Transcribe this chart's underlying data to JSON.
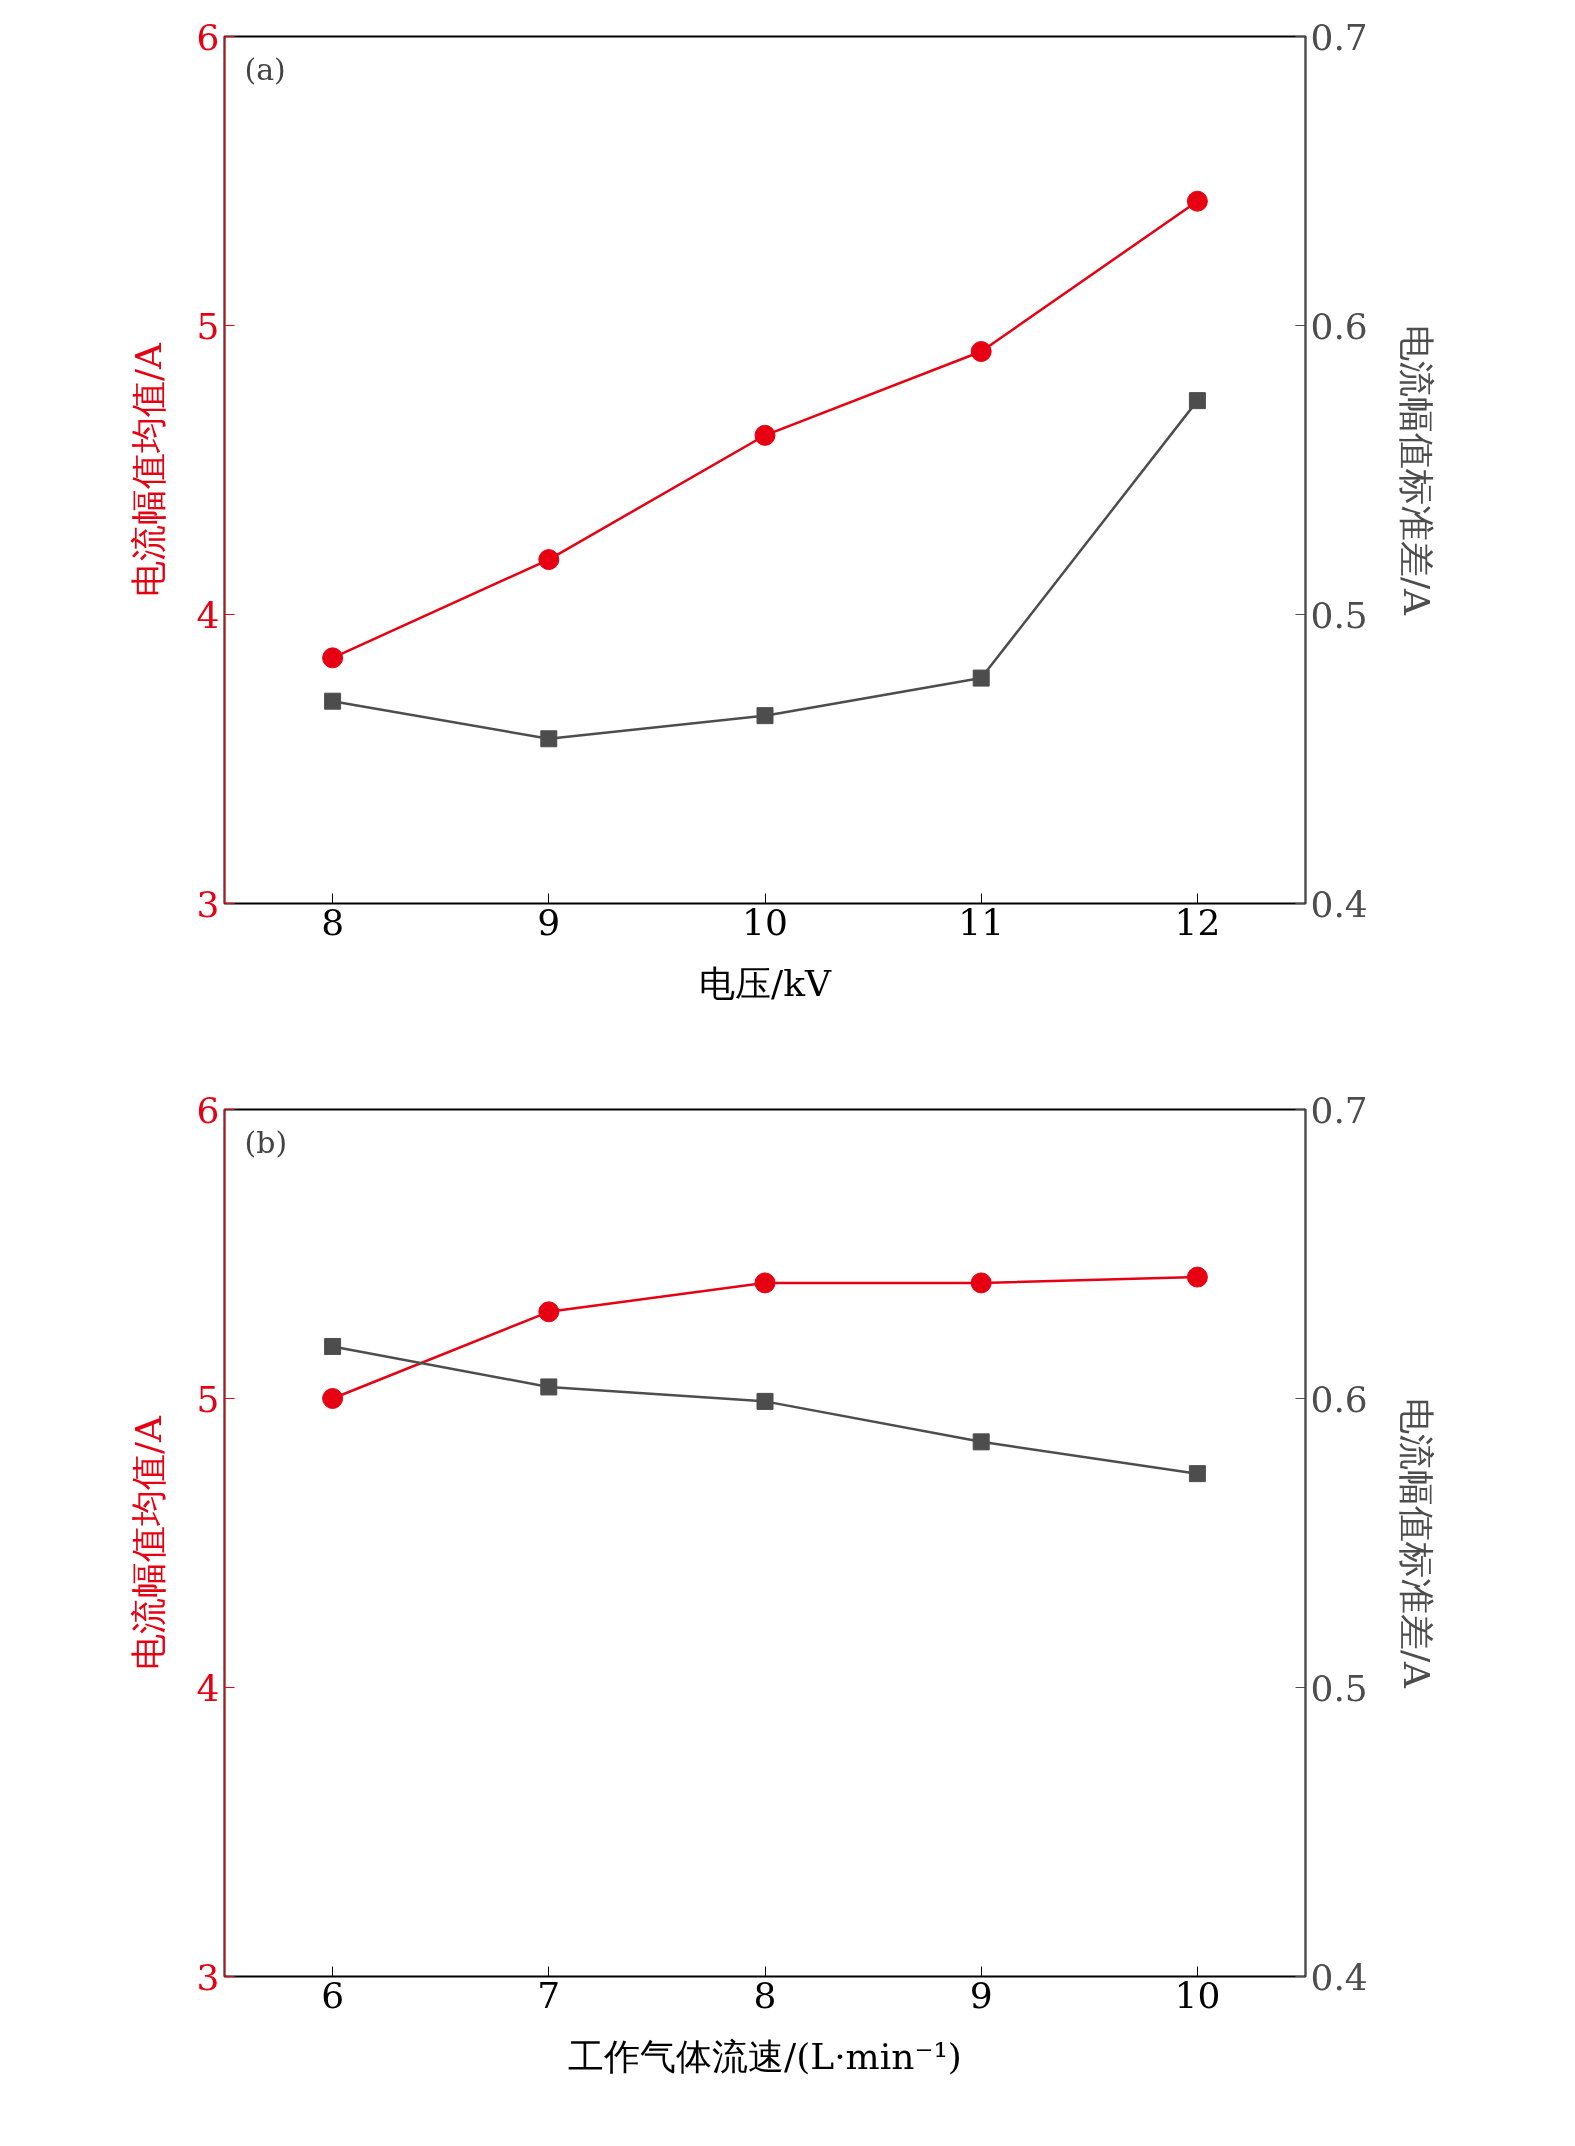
{
  "chart_data": [
    {
      "type": "line",
      "annotations": [
        "(a)"
      ],
      "xlabel": "电压/kV",
      "ylabel": "电流幅值均值/A",
      "y2label": "电流幅值标准差/A",
      "x": [
        8,
        9,
        10,
        11,
        12
      ],
      "xlim": [
        7.5,
        12.5
      ],
      "xticks": [
        8,
        9,
        10,
        11,
        12
      ],
      "ylim": [
        3,
        6
      ],
      "yticks": [
        3,
        4,
        5,
        6
      ],
      "y2lim": [
        0.4,
        0.7
      ],
      "y2ticks": [
        0.4,
        0.5,
        0.6,
        0.7
      ],
      "grid": false,
      "series": [
        {
          "color": "#e60012",
          "marker": "circle",
          "values": [
            3.85,
            4.19,
            4.62,
            4.91,
            5.43
          ]
        },
        {
          "color": "#4d4d4d",
          "marker": "square",
          "axis": "y2",
          "values": [
            0.47,
            0.457,
            0.465,
            0.478,
            0.574
          ]
        }
      ]
    },
    {
      "type": "line",
      "annotations": [
        "(b)"
      ],
      "xlabel": "工作气体流速/(L·min⁻¹)",
      "ylabel": "电流幅值均值/A",
      "y2label": "电流幅值标准差/A",
      "x": [
        6,
        7,
        8,
        9,
        10
      ],
      "xlim": [
        5.5,
        10.5
      ],
      "xticks": [
        6,
        7,
        8,
        9,
        10
      ],
      "ylim": [
        3,
        6
      ],
      "yticks": [
        3,
        4,
        5,
        6
      ],
      "y2lim": [
        0.4,
        0.7
      ],
      "y2ticks": [
        0.4,
        0.5,
        0.6,
        0.7
      ],
      "grid": false,
      "series": [
        {
          "color": "#e60012",
          "marker": "circle",
          "values": [
            5.0,
            5.3,
            5.4,
            5.4,
            5.42
          ]
        },
        {
          "color": "#4d4d4d",
          "marker": "square",
          "axis": "y2",
          "values": [
            0.618,
            0.604,
            0.599,
            0.585,
            0.574
          ]
        }
      ]
    }
  ]
}
